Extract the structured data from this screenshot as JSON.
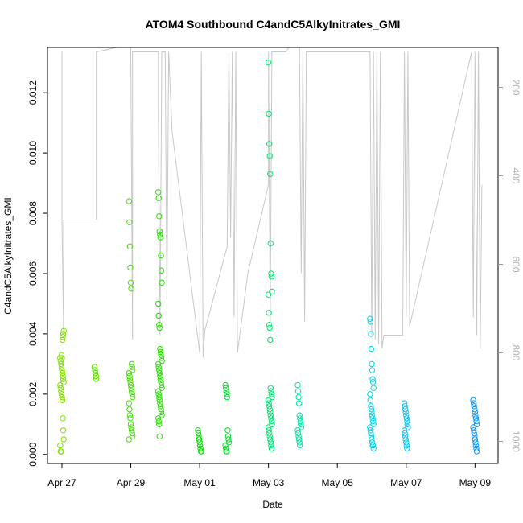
{
  "chart_data": {
    "type": "scatter",
    "title": "ATOM4 Southbound C4andC5AlkyInitrates_GMI",
    "xlabel": "Date",
    "ylabel": "C4andC5AlkyInitrates_GMI",
    "x_ticks": [
      "Apr 27",
      "Apr 29",
      "May 01",
      "May 03",
      "May 05",
      "May 07",
      "May 09"
    ],
    "y_ticks": [
      "0.000",
      "0.002",
      "0.004",
      "0.006",
      "0.008",
      "0.010",
      "0.012"
    ],
    "right_ticks": [
      "200",
      "400",
      "600",
      "800",
      "1000"
    ],
    "xlim": [
      -0.42,
      12.67
    ],
    "ylim": [
      -0.0003,
      0.0135
    ],
    "right_ylim": [
      1050,
      110
    ],
    "right_axis_reversed": true,
    "grid": false,
    "marker": "open-circle",
    "color_gradient": [
      "#7fe000",
      "#00e000",
      "#00e8e8",
      "#1090ff"
    ],
    "right_series_color": "#c8c8c8",
    "clusters": [
      {
        "x": 0.0,
        "y": [
          0.0032,
          0.0031,
          0.003,
          0.0029,
          0.0028,
          0.0027,
          0.0026,
          0.0025,
          0.0024,
          0.0023,
          0.0022,
          0.0021,
          0.002,
          0.0019,
          0.0018,
          0.0012,
          0.0008,
          0.0005,
          0.0003,
          0.0001,
          0.0001,
          0.0033,
          0.0032,
          0.0038,
          0.0039,
          0.004,
          0.0041
        ]
      },
      {
        "x": 1.0,
        "y": [
          0.0029,
          0.0028,
          0.0027,
          0.0026,
          0.0025
        ]
      },
      {
        "x": 2.0,
        "y": [
          0.0084,
          0.0077,
          0.0069,
          0.0062,
          0.0057,
          0.0055,
          0.003,
          0.0029,
          0.0028,
          0.0027,
          0.0026,
          0.0025,
          0.0024,
          0.0023,
          0.0022,
          0.0021,
          0.002,
          0.0019,
          0.0017,
          0.0015,
          0.0013,
          0.0012,
          0.001,
          0.0009,
          0.0008,
          0.0007,
          0.0006,
          0.0005
        ]
      },
      {
        "x": 2.85,
        "y": [
          0.0087,
          0.0085,
          0.0079,
          0.0074,
          0.0073,
          0.0072,
          0.0066,
          0.0061,
          0.0057,
          0.005,
          0.0046,
          0.0043,
          0.0042,
          0.0035,
          0.0034,
          0.0033,
          0.0032,
          0.0031,
          0.003,
          0.0029,
          0.0028,
          0.0027,
          0.0026,
          0.0025,
          0.0024,
          0.0023,
          0.0022,
          0.0021,
          0.002,
          0.0019,
          0.0018,
          0.0017,
          0.0016,
          0.0015,
          0.0014,
          0.0013,
          0.0012,
          0.0011,
          0.001,
          0.0006
        ]
      },
      {
        "x": 4.0,
        "y": [
          0.0008,
          0.0007,
          0.0006,
          0.0005,
          0.0004,
          0.0003,
          0.0002,
          0.0001,
          0.0001
        ]
      },
      {
        "x": 4.8,
        "y": [
          0.0023,
          0.0022,
          0.0021,
          0.002,
          0.0019,
          0.0008,
          0.0006,
          0.0005,
          0.0004,
          0.0003,
          0.0002,
          0.0001,
          0.0001
        ]
      },
      {
        "x": 6.05,
        "y": [
          0.013,
          0.0113,
          0.0103,
          0.0099,
          0.0093,
          0.007,
          0.006,
          0.0059,
          0.0054,
          0.0053,
          0.0047,
          0.0043,
          0.0042,
          0.0038,
          0.0022,
          0.0021,
          0.002,
          0.0019,
          0.0018,
          0.0017,
          0.0016,
          0.0015,
          0.0014,
          0.0013,
          0.0012,
          0.0011,
          0.001,
          0.0009,
          0.0008,
          0.0007,
          0.0006,
          0.0005,
          0.0004,
          0.0003,
          0.0002
        ]
      },
      {
        "x": 6.9,
        "y": [
          0.0023,
          0.0021,
          0.0019,
          0.0017,
          0.0013,
          0.0012,
          0.0011,
          0.001,
          0.0009,
          0.0008,
          0.0007,
          0.0006,
          0.0005,
          0.0004,
          0.0003
        ]
      },
      {
        "x": 9.0,
        "y": [
          0.0045,
          0.0044,
          0.004,
          0.0035,
          0.003,
          0.0028,
          0.0025,
          0.0024,
          0.0022,
          0.002,
          0.0018,
          0.0016,
          0.0015,
          0.0014,
          0.0013,
          0.0012,
          0.0011,
          0.001,
          0.0009,
          0.0008,
          0.0007,
          0.0006,
          0.0005,
          0.0004,
          0.0003,
          0.0003,
          0.0002
        ]
      },
      {
        "x": 10.0,
        "y": [
          0.0017,
          0.0016,
          0.0015,
          0.0014,
          0.0013,
          0.0012,
          0.0011,
          0.001,
          0.0009,
          0.0008,
          0.0007,
          0.0006,
          0.0005,
          0.0004,
          0.0003,
          0.0002
        ]
      },
      {
        "x": 12.0,
        "y": [
          0.0018,
          0.0017,
          0.0016,
          0.0015,
          0.0014,
          0.0013,
          0.0012,
          0.0011,
          0.001,
          0.0009,
          0.0008,
          0.0007,
          0.0006,
          0.0005,
          0.0004,
          0.0003,
          0.0002,
          0.0001
        ]
      }
    ],
    "right_series_description_free_path": [
      [
        0.0,
        120
      ],
      [
        0.0,
        500
      ],
      [
        0.05,
        760
      ],
      [
        0.05,
        500
      ],
      [
        1.0,
        500
      ],
      [
        1.0,
        120
      ],
      [
        1.6,
        110
      ],
      [
        2.0,
        110
      ],
      [
        2.05,
        770
      ],
      [
        2.05,
        120
      ],
      [
        2.3,
        120
      ],
      [
        2.8,
        120
      ],
      [
        2.8,
        250
      ],
      [
        2.85,
        760
      ],
      [
        2.9,
        120
      ],
      [
        3.0,
        120
      ],
      [
        3.05,
        680
      ],
      [
        3.1,
        120
      ],
      [
        3.2,
        300
      ],
      [
        4.0,
        800
      ],
      [
        4.05,
        120
      ],
      [
        4.1,
        810
      ],
      [
        4.15,
        750
      ],
      [
        4.8,
        560
      ],
      [
        4.85,
        120
      ],
      [
        4.9,
        540
      ],
      [
        4.95,
        120
      ],
      [
        5.0,
        720
      ],
      [
        5.05,
        120
      ],
      [
        5.1,
        800
      ],
      [
        5.4,
        620
      ],
      [
        6.0,
        420
      ],
      [
        6.0,
        120
      ],
      [
        6.05,
        740
      ],
      [
        6.1,
        120
      ],
      [
        6.2,
        120
      ],
      [
        6.5,
        120
      ],
      [
        6.6,
        110
      ],
      [
        6.9,
        110
      ],
      [
        6.95,
        620
      ],
      [
        7.0,
        120
      ],
      [
        7.05,
        730
      ],
      [
        7.1,
        120
      ],
      [
        8.95,
        120
      ],
      [
        9.0,
        760
      ],
      [
        9.05,
        120
      ],
      [
        9.1,
        770
      ],
      [
        9.15,
        120
      ],
      [
        9.2,
        780
      ],
      [
        9.25,
        120
      ],
      [
        9.3,
        790
      ],
      [
        9.35,
        760
      ],
      [
        9.9,
        760
      ],
      [
        9.95,
        120
      ],
      [
        10.0,
        720
      ],
      [
        10.05,
        120
      ],
      [
        10.1,
        740
      ],
      [
        11.9,
        120
      ],
      [
        11.95,
        720
      ],
      [
        12.0,
        120
      ],
      [
        12.05,
        760
      ],
      [
        12.1,
        120
      ],
      [
        12.15,
        790
      ],
      [
        12.2,
        420
      ]
    ]
  }
}
